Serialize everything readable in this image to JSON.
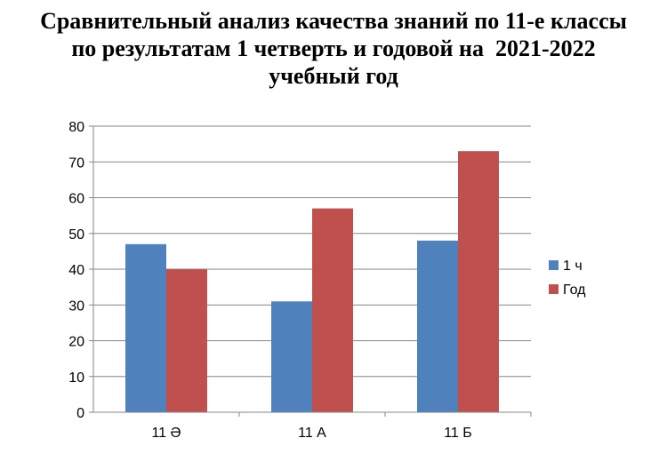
{
  "chart_data": {
    "type": "bar",
    "title_lines": [
      "Сравнительный анализ качества знаний по 11-е классы",
      "по результатам 1 четверть и годовой на  2021-2022",
      "учебный год"
    ],
    "categories": [
      "11 Ә",
      "11 А",
      "11 Б"
    ],
    "series": [
      {
        "name": "1 ч",
        "values": [
          47,
          31,
          48
        ],
        "color": "#4F81BD"
      },
      {
        "name": "Год",
        "values": [
          40,
          57,
          73
        ],
        "color": "#C0504D"
      }
    ],
    "ylim": [
      0,
      80
    ],
    "yticks": [
      0,
      10,
      20,
      30,
      40,
      50,
      60,
      70,
      80
    ],
    "grid": true,
    "legend": "right"
  }
}
